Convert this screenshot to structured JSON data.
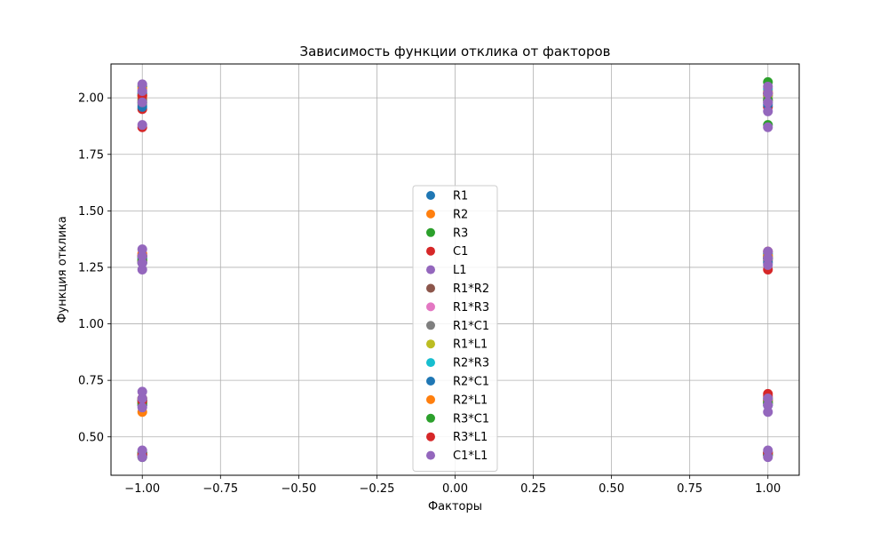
{
  "chart_data": {
    "type": "scatter",
    "title": "Зависимость функции отклика от факторов",
    "xlabel": "Факторы",
    "ylabel": "Функция отклика",
    "xlim": [
      -1.1,
      1.1
    ],
    "ylim": [
      0.33,
      2.15
    ],
    "xticks": [
      -1.0,
      -0.75,
      -0.5,
      -0.25,
      0.0,
      0.25,
      0.5,
      0.75,
      1.0
    ],
    "xtick_labels": [
      "−1.00",
      "−0.75",
      "−0.50",
      "−0.25",
      "0.00",
      "0.25",
      "0.50",
      "0.75",
      "1.00"
    ],
    "yticks": [
      0.5,
      0.75,
      1.0,
      1.25,
      1.5,
      1.75,
      2.0
    ],
    "ytick_labels": [
      "0.50",
      "0.75",
      "1.00",
      "1.25",
      "1.50",
      "1.75",
      "2.00"
    ],
    "grid": true,
    "legend_position": "center-bottom",
    "series": [
      {
        "name": "R1",
        "color": "#1f77b4",
        "points": [
          [
            -1,
            0.42
          ],
          [
            -1,
            0.66
          ],
          [
            -1,
            1.29
          ],
          [
            -1,
            2.02
          ],
          [
            1,
            0.43
          ],
          [
            1,
            0.65
          ],
          [
            1,
            1.3
          ],
          [
            1,
            2.01
          ]
        ]
      },
      {
        "name": "R2",
        "color": "#ff7f0e",
        "points": [
          [
            -1,
            0.43
          ],
          [
            -1,
            0.61
          ],
          [
            -1,
            1.28
          ],
          [
            -1,
            2.0
          ],
          [
            1,
            0.42
          ],
          [
            1,
            0.67
          ],
          [
            1,
            1.29
          ],
          [
            1,
            2.03
          ]
        ]
      },
      {
        "name": "R3",
        "color": "#2ca02c",
        "points": [
          [
            -1,
            0.41
          ],
          [
            -1,
            0.67
          ],
          [
            -1,
            1.3
          ],
          [
            -1,
            2.05
          ],
          [
            1,
            0.42
          ],
          [
            1,
            0.66
          ],
          [
            1,
            1.31
          ],
          [
            1,
            2.07
          ],
          [
            1,
            1.88
          ]
        ]
      },
      {
        "name": "C1",
        "color": "#d62728",
        "points": [
          [
            -1,
            0.42
          ],
          [
            -1,
            0.64
          ],
          [
            -1,
            1.27
          ],
          [
            -1,
            1.87
          ],
          [
            -1,
            1.95
          ],
          [
            1,
            0.43
          ],
          [
            1,
            0.69
          ],
          [
            1,
            1.24
          ],
          [
            1,
            1.96
          ]
        ]
      },
      {
        "name": "L1",
        "color": "#9467bd",
        "points": [
          [
            -1,
            0.43
          ],
          [
            -1,
            0.66
          ],
          [
            -1,
            1.3
          ],
          [
            -1,
            2.01
          ],
          [
            1,
            0.42
          ],
          [
            1,
            0.65
          ],
          [
            1,
            1.29
          ],
          [
            1,
            2.0
          ]
        ]
      },
      {
        "name": "R1*R2",
        "color": "#8c564b",
        "points": [
          [
            -1,
            0.42
          ],
          [
            -1,
            0.65
          ],
          [
            -1,
            1.28
          ],
          [
            -1,
            1.99
          ],
          [
            1,
            0.43
          ],
          [
            1,
            0.66
          ],
          [
            1,
            1.28
          ],
          [
            1,
            1.99
          ]
        ]
      },
      {
        "name": "R1*R3",
        "color": "#e377c2",
        "points": [
          [
            -1,
            0.43
          ],
          [
            -1,
            0.67
          ],
          [
            -1,
            1.31
          ],
          [
            -1,
            2.03
          ],
          [
            1,
            0.42
          ],
          [
            1,
            0.64
          ],
          [
            1,
            1.3
          ],
          [
            1,
            2.02
          ]
        ]
      },
      {
        "name": "R1*C1",
        "color": "#7f7f7f",
        "points": [
          [
            -1,
            0.42
          ],
          [
            -1,
            0.66
          ],
          [
            -1,
            1.29
          ],
          [
            -1,
            1.97
          ],
          [
            1,
            0.43
          ],
          [
            1,
            0.66
          ],
          [
            1,
            1.29
          ],
          [
            1,
            1.98
          ]
        ]
      },
      {
        "name": "R1*L1",
        "color": "#bcbd22",
        "points": [
          [
            -1,
            0.43
          ],
          [
            -1,
            0.65
          ],
          [
            -1,
            1.3
          ],
          [
            -1,
            2.01
          ],
          [
            1,
            0.42
          ],
          [
            1,
            0.65
          ],
          [
            1,
            1.3
          ],
          [
            1,
            2.01
          ]
        ]
      },
      {
        "name": "R2*R3",
        "color": "#17becf",
        "points": [
          [
            -1,
            0.42
          ],
          [
            -1,
            0.66
          ],
          [
            -1,
            1.29
          ],
          [
            -1,
            2.02
          ],
          [
            1,
            0.43
          ],
          [
            1,
            0.67
          ],
          [
            1,
            1.31
          ],
          [
            1,
            2.04
          ]
        ]
      },
      {
        "name": "R2*C1",
        "color": "#1f77b4",
        "points": [
          [
            -1,
            0.43
          ],
          [
            -1,
            0.64
          ],
          [
            -1,
            1.27
          ],
          [
            -1,
            1.96
          ],
          [
            1,
            0.42
          ],
          [
            1,
            0.64
          ],
          [
            1,
            1.27
          ],
          [
            1,
            1.97
          ]
        ]
      },
      {
        "name": "R2*L1",
        "color": "#ff7f0e",
        "points": [
          [
            -1,
            0.42
          ],
          [
            -1,
            0.67
          ],
          [
            -1,
            1.31
          ],
          [
            -1,
            2.04
          ],
          [
            1,
            0.43
          ],
          [
            1,
            0.66
          ],
          [
            1,
            1.3
          ],
          [
            1,
            2.02
          ]
        ]
      },
      {
        "name": "R3*C1",
        "color": "#2ca02c",
        "points": [
          [
            -1,
            0.43
          ],
          [
            -1,
            0.65
          ],
          [
            -1,
            1.28
          ],
          [
            -1,
            1.98
          ],
          [
            1,
            0.42
          ],
          [
            1,
            0.65
          ],
          [
            1,
            1.29
          ],
          [
            1,
            1.99
          ]
        ]
      },
      {
        "name": "R3*L1",
        "color": "#d62728",
        "points": [
          [
            -1,
            0.42
          ],
          [
            -1,
            0.66
          ],
          [
            -1,
            1.3
          ],
          [
            -1,
            2.01
          ],
          [
            1,
            0.43
          ],
          [
            1,
            0.68
          ],
          [
            1,
            1.32
          ],
          [
            1,
            2.02
          ]
        ]
      },
      {
        "name": "C1*L1",
        "color": "#9467bd",
        "points": [
          [
            -1,
            0.41
          ],
          [
            -1,
            0.44
          ],
          [
            -1,
            0.63
          ],
          [
            -1,
            0.67
          ],
          [
            -1,
            0.7
          ],
          [
            -1,
            1.24
          ],
          [
            -1,
            1.27
          ],
          [
            -1,
            1.3
          ],
          [
            -1,
            1.33
          ],
          [
            -1,
            1.88
          ],
          [
            -1,
            1.98
          ],
          [
            -1,
            2.03
          ],
          [
            -1,
            2.06
          ],
          [
            1,
            0.41
          ],
          [
            1,
            0.44
          ],
          [
            1,
            0.61
          ],
          [
            1,
            0.64
          ],
          [
            1,
            0.67
          ],
          [
            1,
            1.26
          ],
          [
            1,
            1.29
          ],
          [
            1,
            1.32
          ],
          [
            1,
            1.87
          ],
          [
            1,
            1.94
          ],
          [
            1,
            1.98
          ],
          [
            1,
            2.02
          ],
          [
            1,
            2.05
          ]
        ]
      }
    ]
  }
}
